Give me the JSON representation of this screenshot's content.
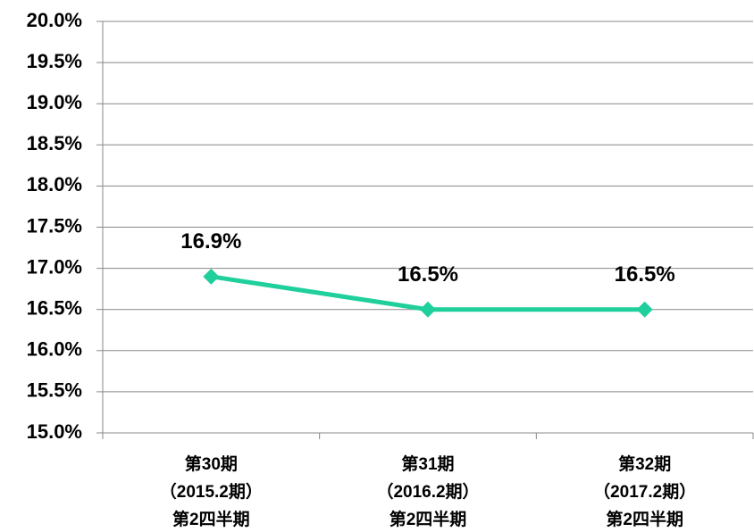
{
  "chart_data": {
    "type": "line",
    "categories": [
      [
        "第30期",
        "（2015.2期）",
        "第2四半期"
      ],
      [
        "第31期",
        "（2016.2期）",
        "第2四半期"
      ],
      [
        "第32期",
        "（2017.2期）",
        "第2四半期"
      ]
    ],
    "series": [
      {
        "color": "#1fcf9c",
        "values": [
          16.9,
          16.5,
          16.5
        ],
        "value_labels": [
          "16.9%",
          "16.5%",
          "16.5%"
        ]
      }
    ],
    "ylim": [
      15,
      20
    ],
    "yticks": [
      {
        "value": 15,
        "label": "15.0%"
      },
      {
        "value": 15.5,
        "label": "15.5%"
      },
      {
        "value": 16,
        "label": "16.0%"
      },
      {
        "value": 16.5,
        "label": "16.5%"
      },
      {
        "value": 17,
        "label": "17.0%"
      },
      {
        "value": 17.5,
        "label": "17.5%"
      },
      {
        "value": 18,
        "label": "18.0%"
      },
      {
        "value": 18.5,
        "label": "18.5%"
      },
      {
        "value": 19,
        "label": "19.0%"
      },
      {
        "value": 19.5,
        "label": "19.5%"
      },
      {
        "value": 20,
        "label": "20.0%"
      }
    ],
    "grid": true
  }
}
